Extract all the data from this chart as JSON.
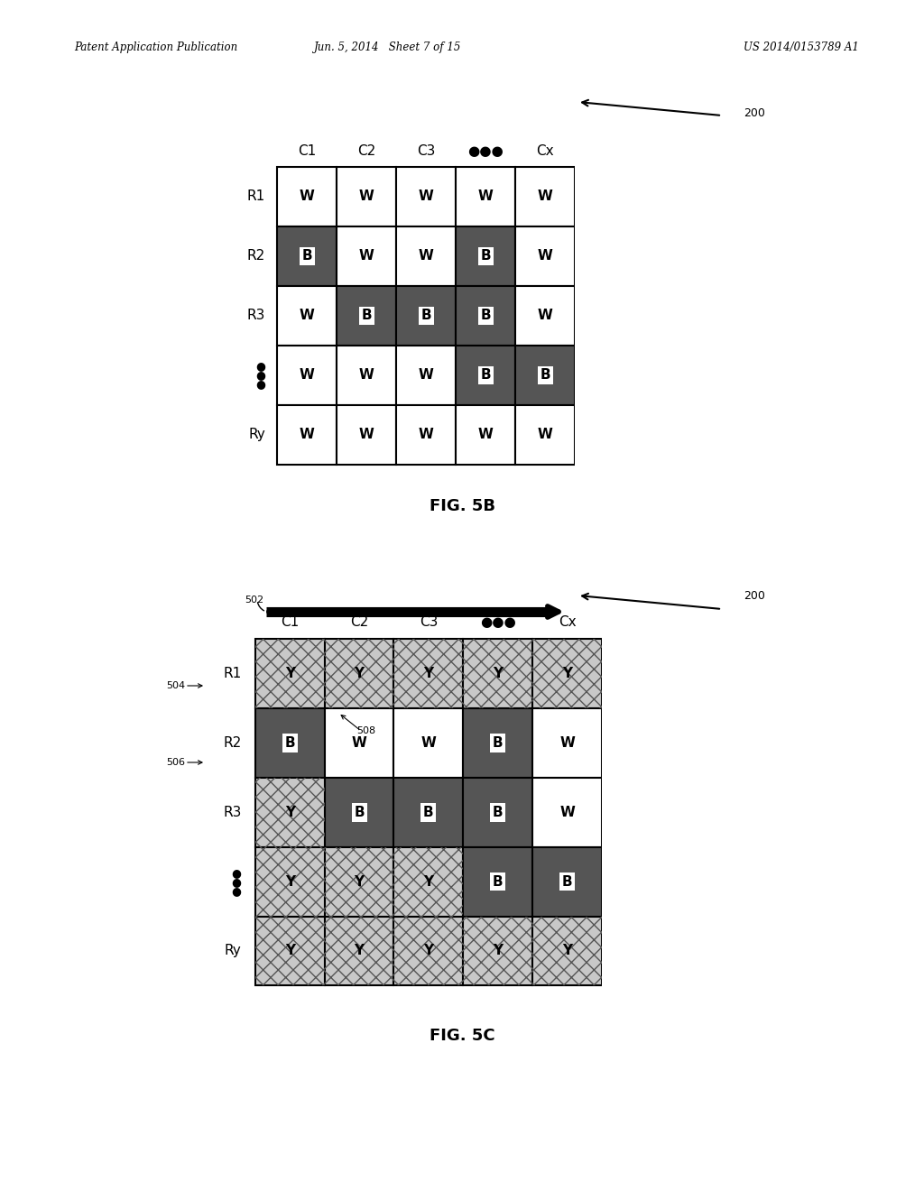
{
  "bg_color": "#ffffff",
  "dark_fill": "#555555",
  "white_fill": "#ffffff",
  "hatch_bg": "#bbbbbb",
  "header_left": "Patent Application Publication",
  "header_mid": "Jun. 5, 2014   Sheet 7 of 15",
  "header_right": "US 2014/0153789 A1",
  "fig5b_label": "FIG. 5B",
  "fig5c_label": "FIG. 5C",
  "fig5b": {
    "col_labels": [
      "C1",
      "C2",
      "C3",
      "●●●",
      "Cx"
    ],
    "row_labels": [
      "R1",
      "R2",
      "R3",
      "●\n●\n●",
      "Ry"
    ],
    "grid": [
      [
        "W",
        "W",
        "W",
        "W",
        "W"
      ],
      [
        "B",
        "W",
        "W",
        "B",
        "W"
      ],
      [
        "W",
        "B",
        "B",
        "B",
        "W"
      ],
      [
        "W",
        "W",
        "W",
        "B",
        "B"
      ],
      [
        "W",
        "W",
        "W",
        "W",
        "W"
      ]
    ]
  },
  "fig5c": {
    "col_labels": [
      "C1",
      "C2",
      "C3",
      "●●●",
      "Cx"
    ],
    "row_labels": [
      "R1",
      "R2",
      "R3",
      "●\n●\n●",
      "Ry"
    ],
    "grid": [
      [
        "Y",
        "Y",
        "Y",
        "Y",
        "Y"
      ],
      [
        "B",
        "W",
        "W",
        "B",
        "W"
      ],
      [
        "Y",
        "B",
        "B",
        "B",
        "W"
      ],
      [
        "Y",
        "Y",
        "Y",
        "B",
        "B"
      ],
      [
        "Y",
        "Y",
        "Y",
        "Y",
        "Y"
      ]
    ]
  }
}
